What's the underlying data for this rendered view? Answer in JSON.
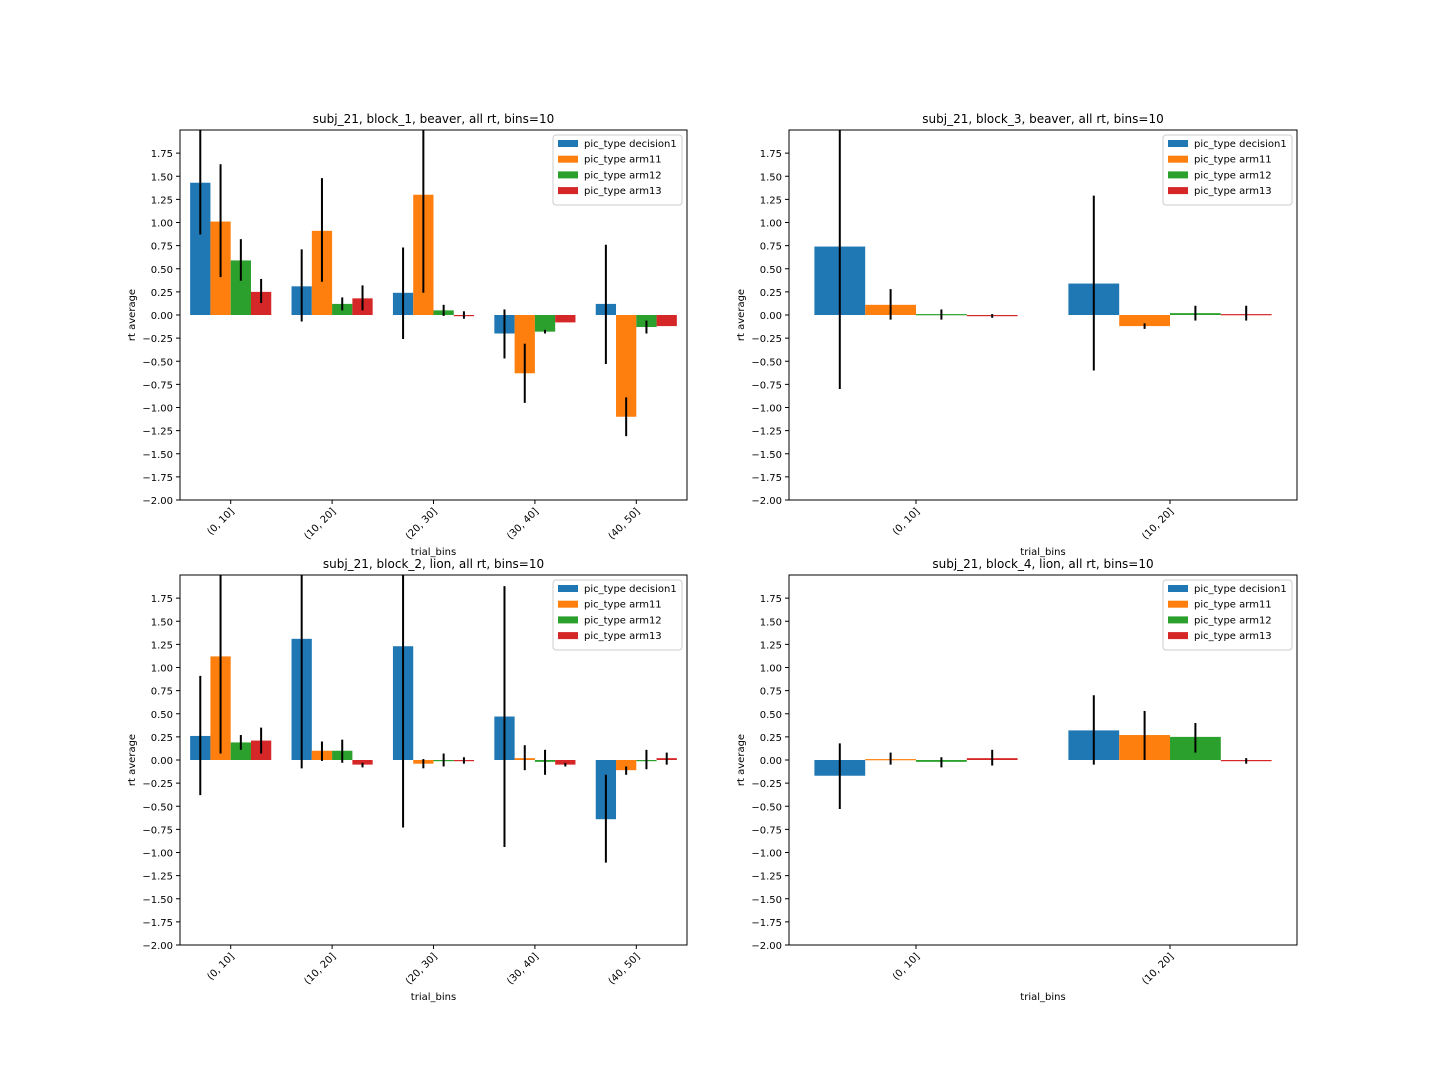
{
  "figure": {
    "colors": {
      "decision1": "#1f77b4",
      "arm11": "#ff7f0e",
      "arm12": "#2ca02c",
      "arm13": "#d62728",
      "errorbar": "#000000"
    }
  },
  "chart_data": [
    {
      "type": "bar",
      "title": "subj_21, block_1, beaver, all rt, bins=10",
      "xlabel": "trial_bins",
      "ylabel": "rt average",
      "ylim": [
        -2.0,
        2.0
      ],
      "yticks": [
        "-2.00",
        "-1.75",
        "-1.50",
        "-1.25",
        "-1.00",
        "-0.75",
        "-0.50",
        "-0.25",
        "0.00",
        "0.25",
        "0.50",
        "0.75",
        "1.00",
        "1.25",
        "1.50",
        "1.75"
      ],
      "legend_position": "top-right",
      "categories": [
        "(0, 10]",
        "(10, 20]",
        "(20, 30]",
        "(30, 40]",
        "(40, 50]"
      ],
      "series": [
        {
          "name": "pic_type decision1",
          "color": "#1f77b4",
          "values": [
            1.43,
            0.31,
            0.24,
            -0.2,
            0.12
          ],
          "err_low": [
            0.87,
            -0.07,
            -0.26,
            -0.47,
            -0.53
          ],
          "err_high": [
            2.0,
            0.71,
            0.73,
            0.06,
            0.76
          ]
        },
        {
          "name": "pic_type arm11",
          "color": "#ff7f0e",
          "values": [
            1.01,
            0.91,
            1.3,
            -0.63,
            -1.1
          ],
          "err_low": [
            0.41,
            0.36,
            0.24,
            -0.95,
            -1.31
          ],
          "err_high": [
            1.63,
            1.48,
            2.0,
            -0.31,
            -0.89
          ]
        },
        {
          "name": "pic_type arm12",
          "color": "#2ca02c",
          "values": [
            0.59,
            0.12,
            0.05,
            -0.18,
            -0.13
          ],
          "err_low": [
            0.37,
            0.05,
            -0.01,
            -0.2,
            -0.2
          ],
          "err_high": [
            0.82,
            0.19,
            0.11,
            -0.16,
            -0.06
          ]
        },
        {
          "name": "pic_type arm13",
          "color": "#d62728",
          "values": [
            0.25,
            0.18,
            -0.01,
            -0.08,
            -0.12
          ],
          "err_low": [
            0.13,
            0.05,
            -0.04,
            -0.08,
            -0.12
          ],
          "err_high": [
            0.39,
            0.32,
            0.04,
            -0.08,
            -0.12
          ]
        }
      ]
    },
    {
      "type": "bar",
      "title": "subj_21, block_3, beaver, all rt, bins=10",
      "xlabel": "trial_bins",
      "ylabel": "rt average",
      "ylim": [
        -2.0,
        2.0
      ],
      "yticks": [
        "-2.00",
        "-1.75",
        "-1.50",
        "-1.25",
        "-1.00",
        "-0.75",
        "-0.50",
        "-0.25",
        "0.00",
        "0.25",
        "0.50",
        "0.75",
        "1.00",
        "1.25",
        "1.50",
        "1.75"
      ],
      "legend_position": "top-right",
      "categories": [
        "(0, 10]",
        "(10, 20]"
      ],
      "series": [
        {
          "name": "pic_type decision1",
          "color": "#1f77b4",
          "values": [
            0.74,
            0.34
          ],
          "err_low": [
            -0.8,
            -0.6
          ],
          "err_high": [
            2.0,
            1.29
          ]
        },
        {
          "name": "pic_type arm11",
          "color": "#ff7f0e",
          "values": [
            0.11,
            -0.12
          ],
          "err_low": [
            -0.05,
            -0.15
          ],
          "err_high": [
            0.28,
            -0.09
          ]
        },
        {
          "name": "pic_type arm12",
          "color": "#2ca02c",
          "values": [
            0.01,
            0.02
          ],
          "err_low": [
            -0.05,
            -0.06
          ],
          "err_high": [
            0.06,
            0.1
          ]
        },
        {
          "name": "pic_type arm13",
          "color": "#d62728",
          "values": [
            -0.01,
            0.01
          ],
          "err_low": [
            -0.03,
            -0.06
          ],
          "err_high": [
            0.01,
            0.1
          ]
        }
      ]
    },
    {
      "type": "bar",
      "title": "subj_21, block_2, lion, all rt, bins=10",
      "xlabel": "trial_bins",
      "ylabel": "rt average",
      "ylim": [
        -2.0,
        2.0
      ],
      "yticks": [
        "-2.00",
        "-1.75",
        "-1.50",
        "-1.25",
        "-1.00",
        "-0.75",
        "-0.50",
        "-0.25",
        "0.00",
        "0.25",
        "0.50",
        "0.75",
        "1.00",
        "1.25",
        "1.50",
        "1.75"
      ],
      "legend_position": "top-right",
      "categories": [
        "(0, 10]",
        "(10, 20]",
        "(20, 30]",
        "(30, 40]",
        "(40, 50]"
      ],
      "series": [
        {
          "name": "pic_type decision1",
          "color": "#1f77b4",
          "values": [
            0.26,
            1.31,
            1.23,
            0.47,
            -0.64
          ],
          "err_low": [
            -0.38,
            -0.09,
            -0.73,
            -0.94,
            -1.11
          ],
          "err_high": [
            0.91,
            2.0,
            2.0,
            1.88,
            -0.16
          ]
        },
        {
          "name": "pic_type arm11",
          "color": "#ff7f0e",
          "values": [
            1.12,
            0.1,
            -0.04,
            0.02,
            -0.11
          ],
          "err_low": [
            0.07,
            -0.01,
            -0.09,
            -0.11,
            -0.16
          ],
          "err_high": [
            2.0,
            0.2,
            0.01,
            0.16,
            -0.07
          ]
        },
        {
          "name": "pic_type arm12",
          "color": "#2ca02c",
          "values": [
            0.19,
            0.1,
            -0.0,
            -0.02,
            -0.0
          ],
          "err_low": [
            0.11,
            -0.03,
            -0.07,
            -0.16,
            -0.1
          ],
          "err_high": [
            0.27,
            0.22,
            0.07,
            0.11,
            0.11
          ]
        },
        {
          "name": "pic_type arm13",
          "color": "#d62728",
          "values": [
            0.21,
            -0.05,
            -0.01,
            -0.05,
            0.02
          ],
          "err_low": [
            0.07,
            -0.08,
            -0.04,
            -0.07,
            -0.05
          ],
          "err_high": [
            0.35,
            -0.03,
            0.03,
            -0.03,
            0.08
          ]
        }
      ]
    },
    {
      "type": "bar",
      "title": "subj_21, block_4, lion, all rt, bins=10",
      "xlabel": "trial_bins",
      "ylabel": "rt average",
      "ylim": [
        -2.0,
        2.0
      ],
      "yticks": [
        "-2.00",
        "-1.75",
        "-1.50",
        "-1.25",
        "-1.00",
        "-0.75",
        "-0.50",
        "-0.25",
        "0.00",
        "0.25",
        "0.50",
        "0.75",
        "1.00",
        "1.25",
        "1.50",
        "1.75"
      ],
      "legend_position": "top-right",
      "categories": [
        "(0, 10]",
        "(10, 20]"
      ],
      "series": [
        {
          "name": "pic_type decision1",
          "color": "#1f77b4",
          "values": [
            -0.17,
            0.32
          ],
          "err_low": [
            -0.53,
            -0.05
          ],
          "err_high": [
            0.18,
            0.7
          ]
        },
        {
          "name": "pic_type arm11",
          "color": "#ff7f0e",
          "values": [
            0.01,
            0.27
          ],
          "err_low": [
            -0.05,
            0.0
          ],
          "err_high": [
            0.08,
            0.53
          ]
        },
        {
          "name": "pic_type arm12",
          "color": "#2ca02c",
          "values": [
            -0.02,
            0.25
          ],
          "err_low": [
            -0.08,
            0.08
          ],
          "err_high": [
            0.03,
            0.4
          ]
        },
        {
          "name": "pic_type arm13",
          "color": "#d62728",
          "values": [
            0.02,
            -0.01
          ],
          "err_low": [
            -0.06,
            -0.04
          ],
          "err_high": [
            0.11,
            0.02
          ]
        }
      ]
    }
  ]
}
